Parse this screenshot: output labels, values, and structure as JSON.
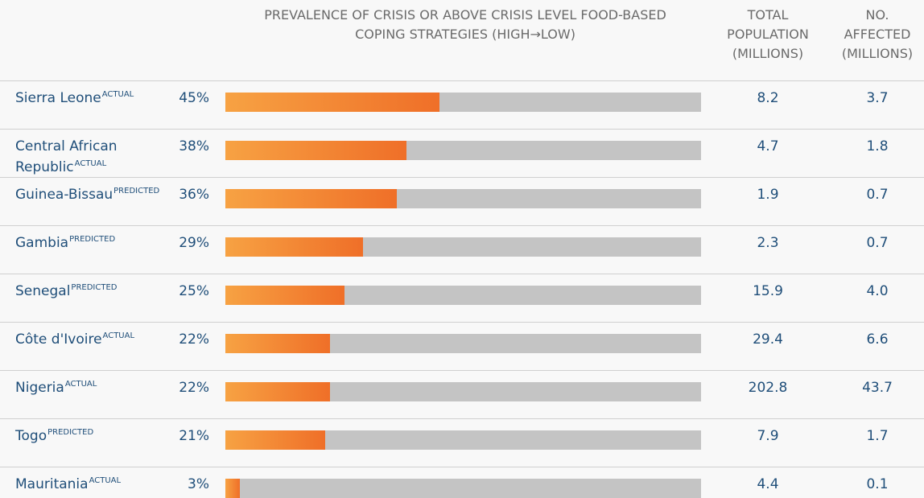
{
  "header": {
    "prevalence": "PREVALENCE OF CRISIS OR ABOVE CRISIS LEVEL FOOD-BASED\nCOPING STRATEGIES (HIGH→LOW)",
    "total_population": "TOTAL\nPOPULATION\n(MILLIONS)",
    "no_affected": "NO.\nAFFECTED\n(MILLIONS)"
  },
  "colors": {
    "bar_start": "#f7a243",
    "bar_end": "#ef6f28",
    "track": "#c4c4c4",
    "text": "#1f4e79"
  },
  "chart_data": {
    "type": "bar",
    "orientation": "horizontal",
    "xlim": [
      0,
      100
    ],
    "rows": [
      {
        "country": "Sierra Leone",
        "tag": "ACTUAL",
        "pct_label": "45%",
        "value": 45,
        "population": "8.2",
        "affected": "3.7"
      },
      {
        "country": "Central African Republic",
        "tag": "ACTUAL",
        "pct_label": "38%",
        "value": 38,
        "population": "4.7",
        "affected": "1.8"
      },
      {
        "country": "Guinea-Bissau",
        "tag": "PREDICTED",
        "pct_label": "36%",
        "value": 36,
        "population": "1.9",
        "affected": "0.7"
      },
      {
        "country": "Gambia",
        "tag": "PREDICTED",
        "pct_label": "29%",
        "value": 29,
        "population": "2.3",
        "affected": "0.7"
      },
      {
        "country": "Senegal",
        "tag": "PREDICTED",
        "pct_label": "25%",
        "value": 25,
        "population": "15.9",
        "affected": "4.0"
      },
      {
        "country": "Côte d'Ivoire",
        "tag": "ACTUAL",
        "pct_label": "22%",
        "value": 22,
        "population": "29.4",
        "affected": "6.6"
      },
      {
        "country": "Nigeria",
        "tag": "ACTUAL",
        "pct_label": "22%",
        "value": 22,
        "population": "202.8",
        "affected": "43.7"
      },
      {
        "country": "Togo",
        "tag": "PREDICTED",
        "pct_label": "21%",
        "value": 21,
        "population": "7.9",
        "affected": "1.7"
      },
      {
        "country": "Mauritania",
        "tag": "ACTUAL",
        "pct_label": "3%",
        "value": 3,
        "population": "4.4",
        "affected": "0.1"
      }
    ]
  }
}
